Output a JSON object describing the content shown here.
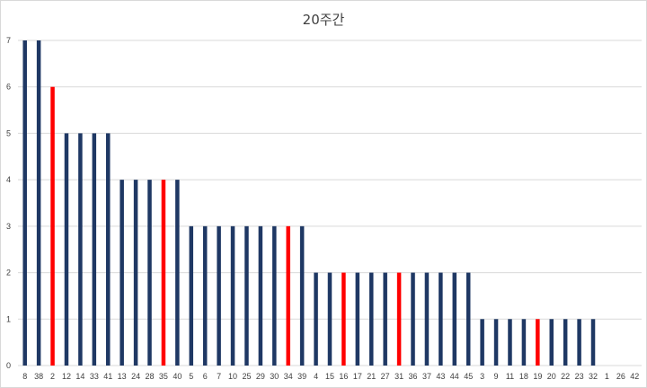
{
  "chart_data": {
    "type": "bar",
    "title": "20주간",
    "xlabel": "",
    "ylabel": "",
    "ylim": [
      0,
      7
    ],
    "yticks": [
      0,
      1,
      2,
      3,
      4,
      5,
      6,
      7
    ],
    "grid": true,
    "legend": "none",
    "categories": [
      "8",
      "38",
      "2",
      "12",
      "14",
      "33",
      "41",
      "13",
      "24",
      "28",
      "35",
      "40",
      "5",
      "6",
      "7",
      "10",
      "25",
      "29",
      "30",
      "34",
      "39",
      "4",
      "15",
      "16",
      "17",
      "21",
      "27",
      "31",
      "36",
      "37",
      "43",
      "44",
      "45",
      "3",
      "9",
      "11",
      "18",
      "19",
      "20",
      "22",
      "23",
      "32",
      "1",
      "26",
      "42"
    ],
    "values": [
      7,
      7,
      6,
      5,
      5,
      5,
      5,
      4,
      4,
      4,
      4,
      4,
      3,
      3,
      3,
      3,
      3,
      3,
      3,
      3,
      3,
      2,
      2,
      2,
      2,
      2,
      2,
      2,
      2,
      2,
      2,
      2,
      2,
      1,
      1,
      1,
      1,
      1,
      1,
      1,
      1,
      1,
      0,
      0,
      0
    ],
    "highlighted": [
      "2",
      "35",
      "34",
      "16",
      "31",
      "19"
    ],
    "colors": {
      "default": "#1f3864",
      "highlight": "#ff0000",
      "grid": "#d9d9d9",
      "text": "#404040"
    }
  }
}
